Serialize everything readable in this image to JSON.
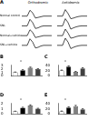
{
  "chart_data": [
    {
      "type": "line",
      "title": "A",
      "annotations": [
        "Orthodromic",
        "Antidromic"
      ],
      "x": [
        0,
        1,
        2,
        3,
        4,
        5,
        6,
        7,
        8,
        9,
        10,
        11,
        12,
        13,
        14,
        15,
        16,
        17,
        18,
        19,
        20,
        21,
        22,
        23,
        24
      ],
      "series": [
        {
          "name": "Normal control",
          "color": "#000000",
          "values": [
            0,
            0,
            0,
            0.9,
            0.5,
            -0.3,
            -0.2,
            -0.1,
            0,
            0,
            0,
            0,
            null,
            0,
            0,
            0,
            1.0,
            0.4,
            -0.4,
            -0.3,
            -0.15,
            -0.05,
            0,
            0,
            0
          ]
        },
        {
          "name": "SNL",
          "color": "#000000",
          "values": [
            -1.5,
            -1.5,
            -1.5,
            -0.5,
            -1.0,
            -1.9,
            -1.8,
            -1.6,
            -1.5,
            -1.5,
            -1.5,
            -1.5,
            null,
            -1.5,
            -1.5,
            -1.5,
            -0.4,
            -1.0,
            -2.0,
            -1.8,
            -1.65,
            -1.55,
            -1.5,
            -1.5,
            -1.5
          ]
        },
        {
          "name": "Normal+vehicle",
          "color": "#000000",
          "values": [
            -3,
            -3,
            -3,
            -2.1,
            -2.5,
            -3.3,
            -3.2,
            -3.1,
            -3,
            -3,
            -3,
            -3,
            null,
            -3,
            -3,
            -3,
            -2.0,
            -2.6,
            -3.4,
            -3.3,
            -3.15,
            -3.05,
            -3,
            -3,
            -3
          ]
        },
        {
          "name": "SNL+vehicle",
          "color": "#000000",
          "values": [
            -4.5,
            -4.5,
            -4.5,
            -3.5,
            -4.0,
            -4.9,
            -4.8,
            -4.6,
            -4.5,
            -4.5,
            -4.5,
            -4.5,
            null,
            -4.5,
            -4.5,
            -4.5,
            -3.4,
            -4.0,
            -5.0,
            -4.8,
            -4.65,
            -4.55,
            -4.5,
            -4.5,
            -4.5
          ]
        }
      ],
      "xlim": [
        0,
        24
      ],
      "ylim": [
        -5.5,
        1.5
      ],
      "tick_labels": false,
      "grid": false
    },
    {
      "type": "bar",
      "title": "B",
      "annotations": [
        "*"
      ],
      "categories": [
        null,
        null,
        null,
        null
      ],
      "values": [
        1.0,
        1.6,
        2.3,
        1.9
      ],
      "errors": [
        0.1,
        0.15,
        0.2,
        0.15
      ],
      "colors": [
        "#ffffff",
        "#000000",
        "#808080",
        "#404040"
      ],
      "ylim": [
        0,
        3
      ],
      "yticks": [
        0,
        1,
        2,
        3
      ],
      "grid": false
    },
    {
      "type": "bar",
      "title": "C",
      "annotations": [
        "*"
      ],
      "categories": [
        null,
        null,
        null,
        null
      ],
      "values": [
        20,
        35,
        15,
        28
      ],
      "errors": [
        2,
        3,
        2,
        3
      ],
      "colors": [
        "#ffffff",
        "#000000",
        "#808080",
        "#404040"
      ],
      "ylim": [
        0,
        40
      ],
      "yticks": [
        0,
        20,
        40
      ],
      "grid": false
    },
    {
      "type": "bar",
      "title": "D",
      "annotations": [
        "*"
      ],
      "categories": [
        null,
        null,
        null,
        null
      ],
      "values": [
        0.5,
        1.2,
        1.6,
        1.0
      ],
      "errors": [
        0.05,
        0.1,
        0.15,
        0.1
      ],
      "colors": [
        "#ffffff",
        "#000000",
        "#808080",
        "#404040"
      ],
      "ylim": [
        0,
        2
      ],
      "yticks": [
        0,
        1,
        2
      ],
      "grid": false
    },
    {
      "type": "bar",
      "title": "E",
      "annotations": [
        "*"
      ],
      "categories": [
        null,
        null,
        null,
        null
      ],
      "values": [
        10,
        25,
        30,
        18
      ],
      "errors": [
        1.5,
        2.5,
        3,
        2
      ],
      "colors": [
        "#ffffff",
        "#000000",
        "#808080",
        "#404040"
      ],
      "ylim": [
        0,
        40
      ],
      "yticks": [
        0,
        20,
        40
      ],
      "grid": false
    }
  ]
}
